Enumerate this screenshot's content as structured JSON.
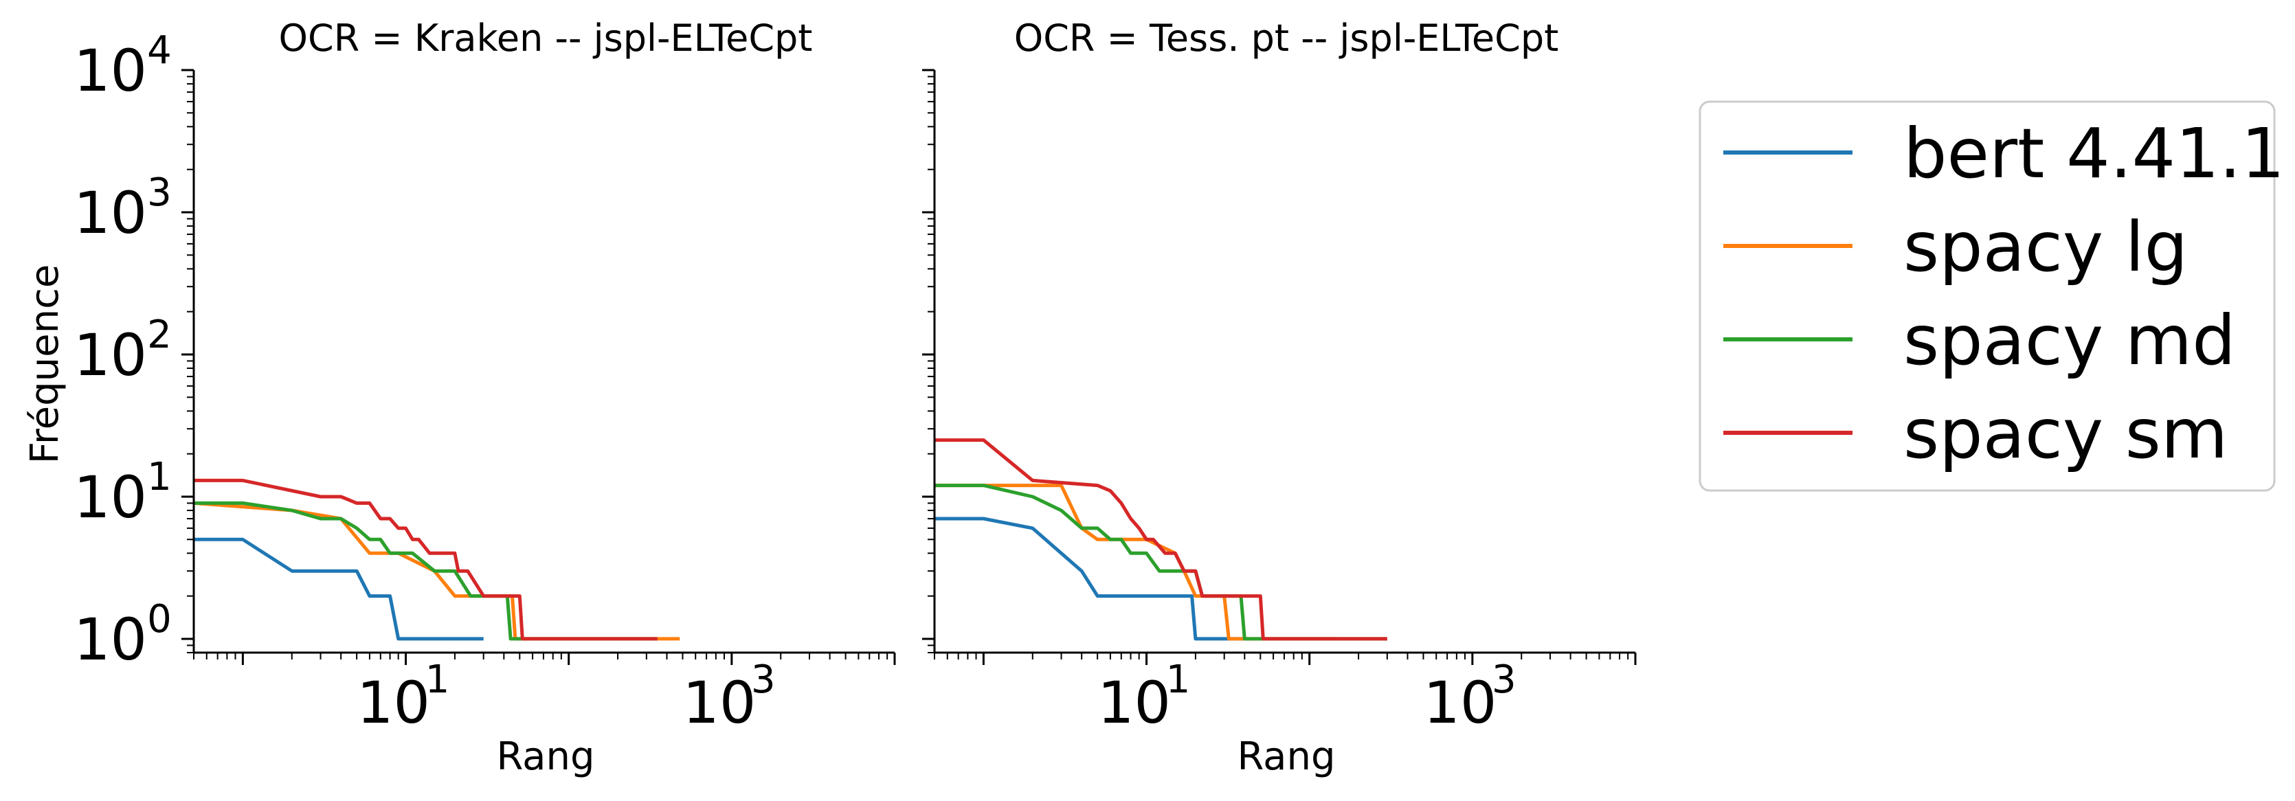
{
  "chart_data": [
    {
      "type": "line",
      "title": "OCR = Kraken -- jspl-ELTeCpt",
      "xlabel": "Rang",
      "ylabel": "Fréquence",
      "xscale": "log",
      "yscale": "log",
      "xlim": [
        0.5,
        10000
      ],
      "ylim": [
        0.8,
        10000
      ],
      "xticks": [
        {
          "base": "10",
          "exp": "1"
        },
        {
          "base": "10",
          "exp": "3"
        }
      ],
      "yticks": [
        {
          "base": "10",
          "exp": "0"
        },
        {
          "base": "10",
          "exp": "1"
        },
        {
          "base": "10",
          "exp": "2"
        },
        {
          "base": "10",
          "exp": "3"
        },
        {
          "base": "10",
          "exp": "4"
        }
      ],
      "grid": false,
      "series": [
        {
          "name": "bert 4.41.1",
          "color": "#1f77b4",
          "x": [
            0.5,
            1,
            2,
            5,
            6,
            8,
            9,
            30
          ],
          "y": [
            5,
            5,
            3,
            3,
            2,
            2,
            1,
            1
          ]
        },
        {
          "name": "spacy lg",
          "color": "#ff7f0e",
          "x": [
            0.5,
            2,
            4,
            6,
            9,
            15,
            20,
            30,
            45,
            47,
            480
          ],
          "y": [
            9,
            8,
            7,
            4,
            4,
            3,
            2,
            2,
            2,
            1,
            1
          ]
        },
        {
          "name": "spacy md",
          "color": "#2ca02c",
          "x": [
            0.5,
            1,
            2,
            3,
            4,
            5,
            6,
            7,
            8,
            9,
            11,
            15,
            20,
            25,
            30,
            42,
            44,
            350
          ],
          "y": [
            9,
            9,
            8,
            7,
            7,
            6,
            5,
            5,
            4,
            4,
            4,
            3,
            3,
            2,
            2,
            2,
            1,
            1
          ]
        },
        {
          "name": "spacy sm",
          "color": "#d62728",
          "x": [
            0.5,
            1,
            3,
            4,
            5,
            6,
            7,
            8,
            9,
            10,
            11,
            12,
            14,
            20,
            21,
            24,
            30,
            50,
            52,
            350
          ],
          "y": [
            13,
            13,
            10,
            10,
            9,
            9,
            7,
            7,
            6,
            6,
            5,
            5,
            4,
            4,
            3,
            3,
            2,
            2,
            1,
            1
          ]
        }
      ]
    },
    {
      "type": "line",
      "title": "OCR = Tess. pt -- jspl-ELTeCpt",
      "xlabel": "Rang",
      "xscale": "log",
      "yscale": "log",
      "xlim": [
        0.5,
        10000
      ],
      "ylim": [
        0.8,
        10000
      ],
      "xticks": [
        {
          "base": "10",
          "exp": "1"
        },
        {
          "base": "10",
          "exp": "3"
        }
      ],
      "grid": false,
      "series": [
        {
          "name": "bert 4.41.1",
          "color": "#1f77b4",
          "x": [
            0.5,
            1,
            2,
            4,
            5,
            9,
            10,
            15,
            19,
            20,
            40
          ],
          "y": [
            7,
            7,
            6,
            3,
            2,
            2,
            2,
            2,
            2,
            1,
            1
          ]
        },
        {
          "name": "spacy lg",
          "color": "#ff7f0e",
          "x": [
            0.5,
            1,
            3,
            4,
            5,
            7,
            10,
            15,
            17,
            20,
            30,
            32,
            150
          ],
          "y": [
            12,
            12,
            12,
            6,
            5,
            5,
            5,
            4,
            3,
            2,
            2,
            1,
            1
          ]
        },
        {
          "name": "spacy md",
          "color": "#2ca02c",
          "x": [
            0.5,
            1,
            2,
            3,
            4,
            5,
            6,
            7,
            8,
            10,
            12,
            15,
            20,
            22,
            30,
            38,
            40,
            48,
            50,
            300
          ],
          "y": [
            12,
            12,
            10,
            8,
            6,
            6,
            5,
            5,
            4,
            4,
            3,
            3,
            3,
            2,
            2,
            2,
            1,
            1,
            1,
            1
          ]
        },
        {
          "name": "spacy sm",
          "color": "#d62728",
          "x": [
            0.5,
            1,
            2,
            5,
            6,
            7,
            8,
            9,
            10,
            11,
            13,
            15,
            17,
            18,
            20,
            22,
            25,
            30,
            40,
            50,
            52,
            300
          ],
          "y": [
            25,
            25,
            13,
            12,
            11,
            9,
            7,
            6,
            5,
            5,
            4,
            4,
            3,
            3,
            3,
            2,
            2,
            2,
            2,
            2,
            1,
            1
          ]
        }
      ]
    }
  ],
  "legend": {
    "position": "right",
    "entries": [
      {
        "label": "bert 4.41.1",
        "color": "#1f77b4"
      },
      {
        "label": "spacy lg",
        "color": "#ff7f0e"
      },
      {
        "label": "spacy md",
        "color": "#2ca02c"
      },
      {
        "label": "spacy sm",
        "color": "#d62728"
      }
    ]
  }
}
